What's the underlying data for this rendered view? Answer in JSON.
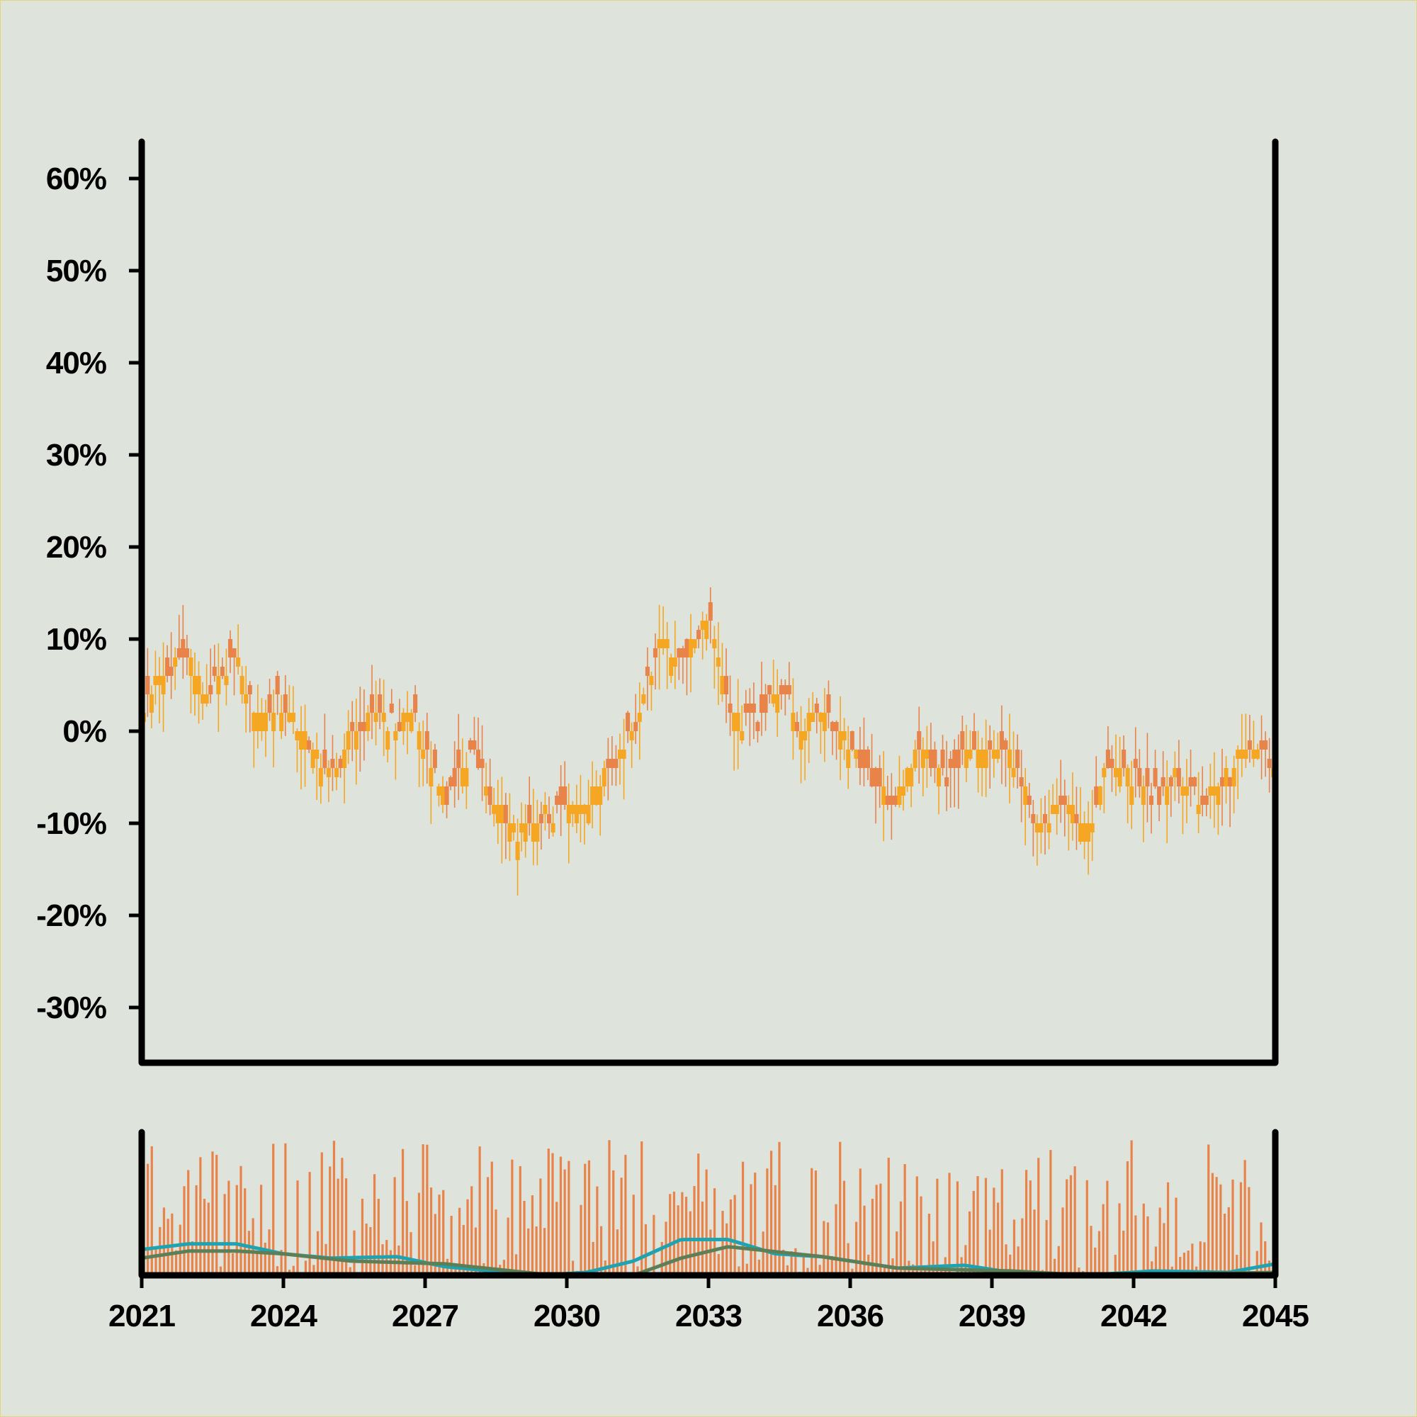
{
  "chart_data": [
    {
      "type": "candlestick",
      "panel": "price",
      "title": "",
      "xlabel": "",
      "ylabel": "",
      "ylim": [
        -0.36,
        0.64
      ],
      "y_ticks": [
        {
          "value": 0.6,
          "label": "60%"
        },
        {
          "value": 0.5,
          "label": "50%"
        },
        {
          "value": 0.4,
          "label": "40%"
        },
        {
          "value": 0.3,
          "label": "30%"
        },
        {
          "value": 0.2,
          "label": "20%"
        },
        {
          "value": 0.1,
          "label": "10%"
        },
        {
          "value": 0.0,
          "label": "0%"
        },
        {
          "value": -0.1,
          "label": "-10%"
        },
        {
          "value": -0.2,
          "label": "-20%"
        },
        {
          "value": -0.3,
          "label": "-30%"
        }
      ],
      "xlim": [
        "2021-01",
        "2045-01"
      ],
      "candle_count": 288,
      "close_path": [
        {
          "x": "2021-01",
          "y": 0.02
        },
        {
          "x": "2021-06",
          "y": 0.06
        },
        {
          "x": "2022-01",
          "y": 0.08
        },
        {
          "x": "2022-06",
          "y": 0.04
        },
        {
          "x": "2023-01",
          "y": 0.08
        },
        {
          "x": "2023-06",
          "y": 0.02
        },
        {
          "x": "2024-01",
          "y": 0.03
        },
        {
          "x": "2024-06",
          "y": 0.0
        },
        {
          "x": "2025-01",
          "y": -0.05
        },
        {
          "x": "2025-06",
          "y": -0.01
        },
        {
          "x": "2026-01",
          "y": 0.02
        },
        {
          "x": "2026-06",
          "y": 0.0
        },
        {
          "x": "2026-09",
          "y": 0.03
        },
        {
          "x": "2027-06",
          "y": -0.08
        },
        {
          "x": "2028-01",
          "y": -0.02
        },
        {
          "x": "2028-06",
          "y": -0.08
        },
        {
          "x": "2029-01",
          "y": -0.11
        },
        {
          "x": "2029-06",
          "y": -0.09
        },
        {
          "x": "2030-06",
          "y": -0.08
        },
        {
          "x": "2031-06",
          "y": 0.0
        },
        {
          "x": "2032-01",
          "y": 0.1
        },
        {
          "x": "2032-06",
          "y": 0.08
        },
        {
          "x": "2033-01",
          "y": 0.13
        },
        {
          "x": "2033-06",
          "y": 0.02
        },
        {
          "x": "2034-01",
          "y": 0.01
        },
        {
          "x": "2034-06",
          "y": 0.05
        },
        {
          "x": "2035-01",
          "y": 0.0
        },
        {
          "x": "2035-06",
          "y": 0.03
        },
        {
          "x": "2036-06",
          "y": -0.05
        },
        {
          "x": "2037-01",
          "y": -0.08
        },
        {
          "x": "2037-06",
          "y": -0.02
        },
        {
          "x": "2038-01",
          "y": -0.05
        },
        {
          "x": "2038-06",
          "y": -0.02
        },
        {
          "x": "2039-06",
          "y": -0.02
        },
        {
          "x": "2040-01",
          "y": -0.11
        },
        {
          "x": "2040-06",
          "y": -0.07
        },
        {
          "x": "2041-01",
          "y": -0.11
        },
        {
          "x": "2041-06",
          "y": -0.04
        },
        {
          "x": "2042-01",
          "y": -0.05
        },
        {
          "x": "2042-06",
          "y": -0.07
        },
        {
          "x": "2043-01",
          "y": -0.05
        },
        {
          "x": "2043-06",
          "y": -0.08
        },
        {
          "x": "2044-01",
          "y": -0.05
        },
        {
          "x": "2044-06",
          "y": -0.01
        },
        {
          "x": "2045-01",
          "y": -0.03
        }
      ],
      "colors": {
        "up": "#f5a623",
        "down": "#e8834a"
      }
    },
    {
      "type": "bar+line",
      "panel": "volume",
      "title": "",
      "xlabel": "",
      "ylabel": "",
      "x_ticks": [
        "2021",
        "2024",
        "2027",
        "2030",
        "2033",
        "2036",
        "2039",
        "2042",
        "2045"
      ],
      "series": [
        {
          "kind": "line",
          "color": "#20a3b0",
          "points": [
            {
              "x": "2021-01",
              "y": 0.18
            },
            {
              "x": "2022-01",
              "y": 0.22
            },
            {
              "x": "2023-01",
              "y": 0.22
            },
            {
              "x": "2024-01",
              "y": 0.15
            },
            {
              "x": "2025-01",
              "y": 0.12
            },
            {
              "x": "2026-06",
              "y": 0.13
            },
            {
              "x": "2027-06",
              "y": 0.06
            },
            {
              "x": "2029-06",
              "y": 0.0
            },
            {
              "x": "2030-06",
              "y": 0.02
            },
            {
              "x": "2031-06",
              "y": 0.1
            },
            {
              "x": "2032-06",
              "y": 0.25
            },
            {
              "x": "2033-06",
              "y": 0.25
            },
            {
              "x": "2034-06",
              "y": 0.15
            },
            {
              "x": "2035-06",
              "y": 0.13
            },
            {
              "x": "2037-01",
              "y": 0.05
            },
            {
              "x": "2038-06",
              "y": 0.07
            },
            {
              "x": "2039-06",
              "y": 0.02
            },
            {
              "x": "2041-01",
              "y": 0.0
            },
            {
              "x": "2042-06",
              "y": 0.03
            },
            {
              "x": "2044-01",
              "y": 0.02
            },
            {
              "x": "2045-01",
              "y": 0.08
            }
          ]
        },
        {
          "kind": "line",
          "color": "#5d7f57",
          "points": [
            {
              "x": "2021-01",
              "y": 0.12
            },
            {
              "x": "2022-01",
              "y": 0.17
            },
            {
              "x": "2023-01",
              "y": 0.17
            },
            {
              "x": "2024-01",
              "y": 0.15
            },
            {
              "x": "2025-06",
              "y": 0.1
            },
            {
              "x": "2027-06",
              "y": 0.08
            },
            {
              "x": "2029-06",
              "y": 0.01
            },
            {
              "x": "2031-06",
              "y": 0.0
            },
            {
              "x": "2032-06",
              "y": 0.12
            },
            {
              "x": "2033-06",
              "y": 0.2
            },
            {
              "x": "2035-06",
              "y": 0.13
            },
            {
              "x": "2037-01",
              "y": 0.05
            },
            {
              "x": "2039-06",
              "y": 0.03
            },
            {
              "x": "2041-01",
              "y": 0.0
            },
            {
              "x": "2043-01",
              "y": 0.01
            },
            {
              "x": "2045-01",
              "y": 0.02
            }
          ]
        }
      ],
      "bar_color": "#e8834a"
    }
  ],
  "x_axis": {
    "ticks": [
      {
        "year": 2021,
        "label": "2021"
      },
      {
        "year": 2024,
        "label": "2024"
      },
      {
        "year": 2027,
        "label": "2027"
      },
      {
        "year": 2030,
        "label": "2030"
      },
      {
        "year": 2033,
        "label": "2033"
      },
      {
        "year": 2036,
        "label": "2036"
      },
      {
        "year": 2039,
        "label": "2039"
      },
      {
        "year": 2042,
        "label": "2042"
      },
      {
        "year": 2045,
        "label": "2045"
      }
    ]
  }
}
